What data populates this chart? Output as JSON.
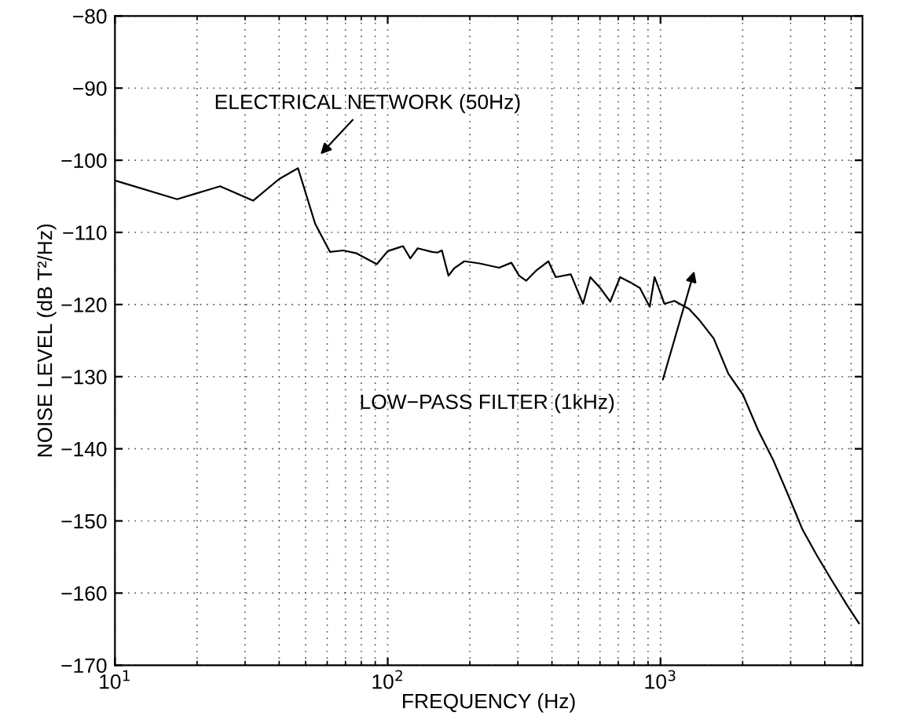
{
  "chart_data": {
    "type": "line",
    "xlabel": "FREQUENCY (Hz)",
    "ylabel": "NOISE LEVEL (dB T²/Hz)",
    "log": "x",
    "grid": true,
    "marker": "none",
    "line_style": "solid",
    "xlim": [
      10,
      5500
    ],
    "ylim": [
      -170,
      -80
    ],
    "xticks": [
      {
        "value": 10,
        "label": "10$^{1}$"
      },
      {
        "value": 100,
        "label": "10$^{2}$"
      },
      {
        "value": 1000,
        "label": "10$^{3}$"
      }
    ],
    "yticks": [
      -170,
      -160,
      -150,
      -140,
      -130,
      -120,
      -110,
      -100,
      -90,
      -80
    ],
    "series": [
      {
        "color": "#000000",
        "x": [
          10,
          16.9,
          24.3,
          32.1,
          40,
          46.9,
          54.2,
          61.4,
          68.7,
          76.9,
          91.2,
          100,
          113.8,
          121,
          128.8,
          145.4,
          152,
          158,
          167,
          175,
          191,
          217,
          256,
          284,
          303,
          322,
          350,
          388,
          413,
          469,
          520,
          553,
          601,
          654,
          711,
          773,
          840,
          913,
          951,
          1000,
          1033,
          1124,
          1273,
          1384,
          1567,
          1774,
          2006,
          2278,
          2585,
          2929,
          3316,
          3758,
          4255,
          4815,
          5340
        ],
        "values": [
          -102.8,
          -105.4,
          -103.6,
          -105.6,
          -102.6,
          -101.1,
          -108.8,
          -112.7,
          -112.5,
          -112.9,
          -114.4,
          -112.6,
          -111.9,
          -113.6,
          -112.2,
          -112.7,
          -112.8,
          -112.5,
          -116.0,
          -115.0,
          -114.0,
          -114.3,
          -114.9,
          -114.2,
          -116.0,
          -116.7,
          -115.3,
          -114.0,
          -116.2,
          -115.8,
          -119.9,
          -116.2,
          -117.7,
          -119.6,
          -116.2,
          -116.9,
          -117.7,
          -120.3,
          -116.2,
          -118.4,
          -119.9,
          -119.5,
          -120.6,
          -122.1,
          -124.7,
          -129.6,
          -132.5,
          -137.4,
          -141.5,
          -146.3,
          -151.2,
          -154.9,
          -158.3,
          -161.6,
          -164.2
        ]
      }
    ],
    "annotations": [
      "ELECTRICAL NETWORK (50Hz)",
      "LOW−PASS FILTER (1kHz)"
    ]
  }
}
